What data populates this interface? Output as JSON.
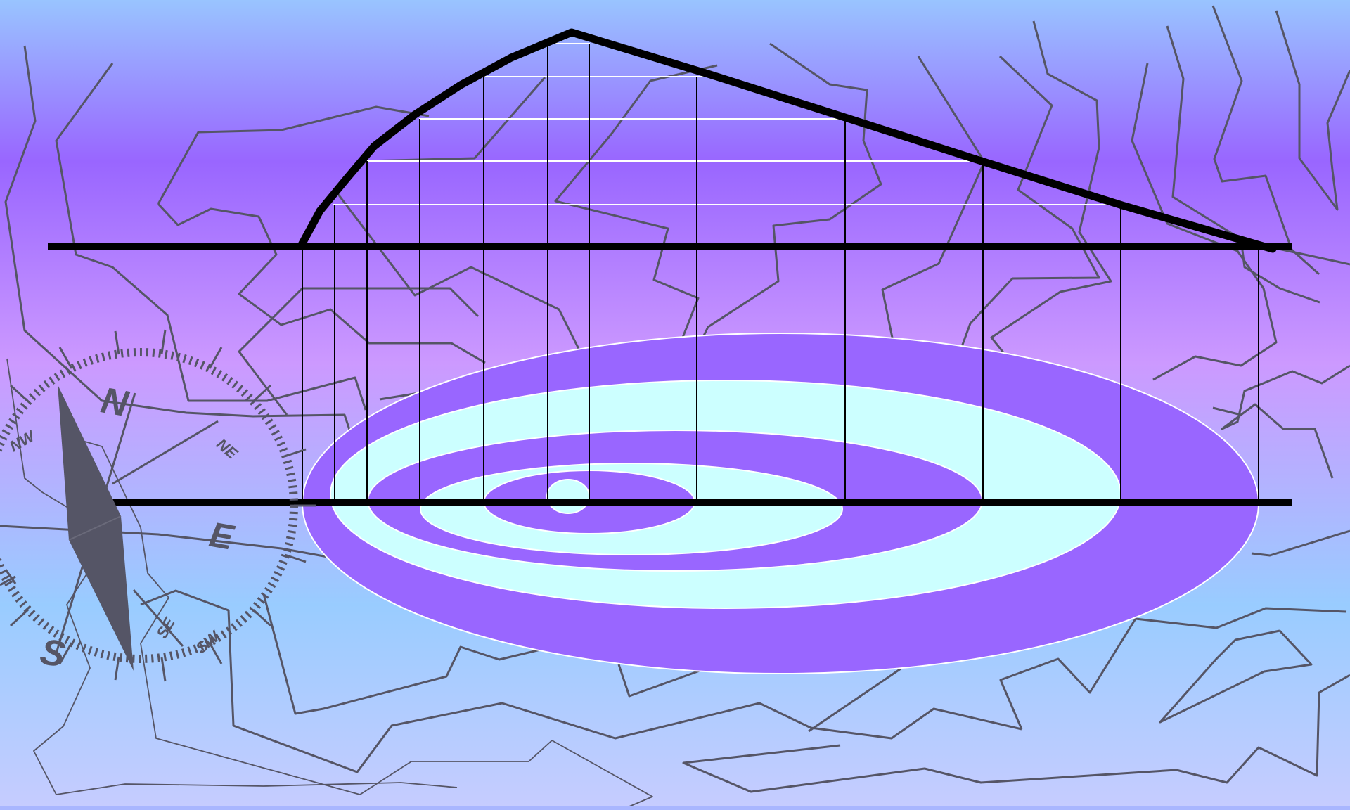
{
  "diagram": {
    "kind": "contour-map-profile-construction",
    "compass": {
      "labels": {
        "north": "N",
        "south": "S",
        "east": "E",
        "northwest": "NW",
        "northeast": "NE",
        "southeast": "SE",
        "southwest": "SW"
      }
    },
    "contour_levels": 5,
    "colors": {
      "background_top": "#99c4ff",
      "background_mid": "#9966ff",
      "background_low": "#cc99ff",
      "background_bottom": "#c6ccff",
      "contour_dark": "#9966ff",
      "contour_light": "#ccffff",
      "profile_line": "#000000",
      "topo_lines": "#555566",
      "compass": "#555566"
    }
  }
}
